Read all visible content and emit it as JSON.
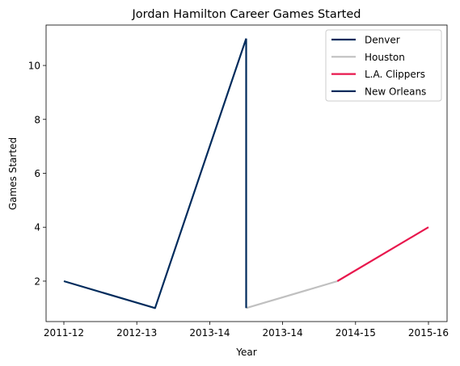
{
  "chart_data": {
    "type": "line",
    "title": "Jordan Hamilton Career Games Started",
    "xlabel": "Year",
    "ylabel": "Games Started",
    "x_ticks": [
      "2011-12",
      "2012-13",
      "2013-14",
      "2013-14",
      "2014-15",
      "2015-16"
    ],
    "yticks": [
      2,
      4,
      6,
      8,
      10
    ],
    "ylim": [
      0.5,
      11.5
    ],
    "grid": false,
    "legend_position": "top-right",
    "series": [
      {
        "name": "Denver",
        "color": "#002B5C",
        "points": [
          [
            0,
            2
          ],
          [
            1.25,
            1
          ],
          [
            2.5,
            11
          ]
        ]
      },
      {
        "name": "Houston",
        "color": "#C0C0C0",
        "points": [
          [
            2.5,
            1
          ],
          [
            3.75,
            2
          ]
        ]
      },
      {
        "name": "L.A. Clippers",
        "color": "#E8174D",
        "points": [
          [
            3.75,
            2
          ],
          [
            5,
            4
          ]
        ]
      },
      {
        "name": "New Orleans",
        "color": "#002B5C",
        "points": [
          [
            2.5,
            11
          ],
          [
            2.5,
            1
          ]
        ]
      }
    ]
  }
}
